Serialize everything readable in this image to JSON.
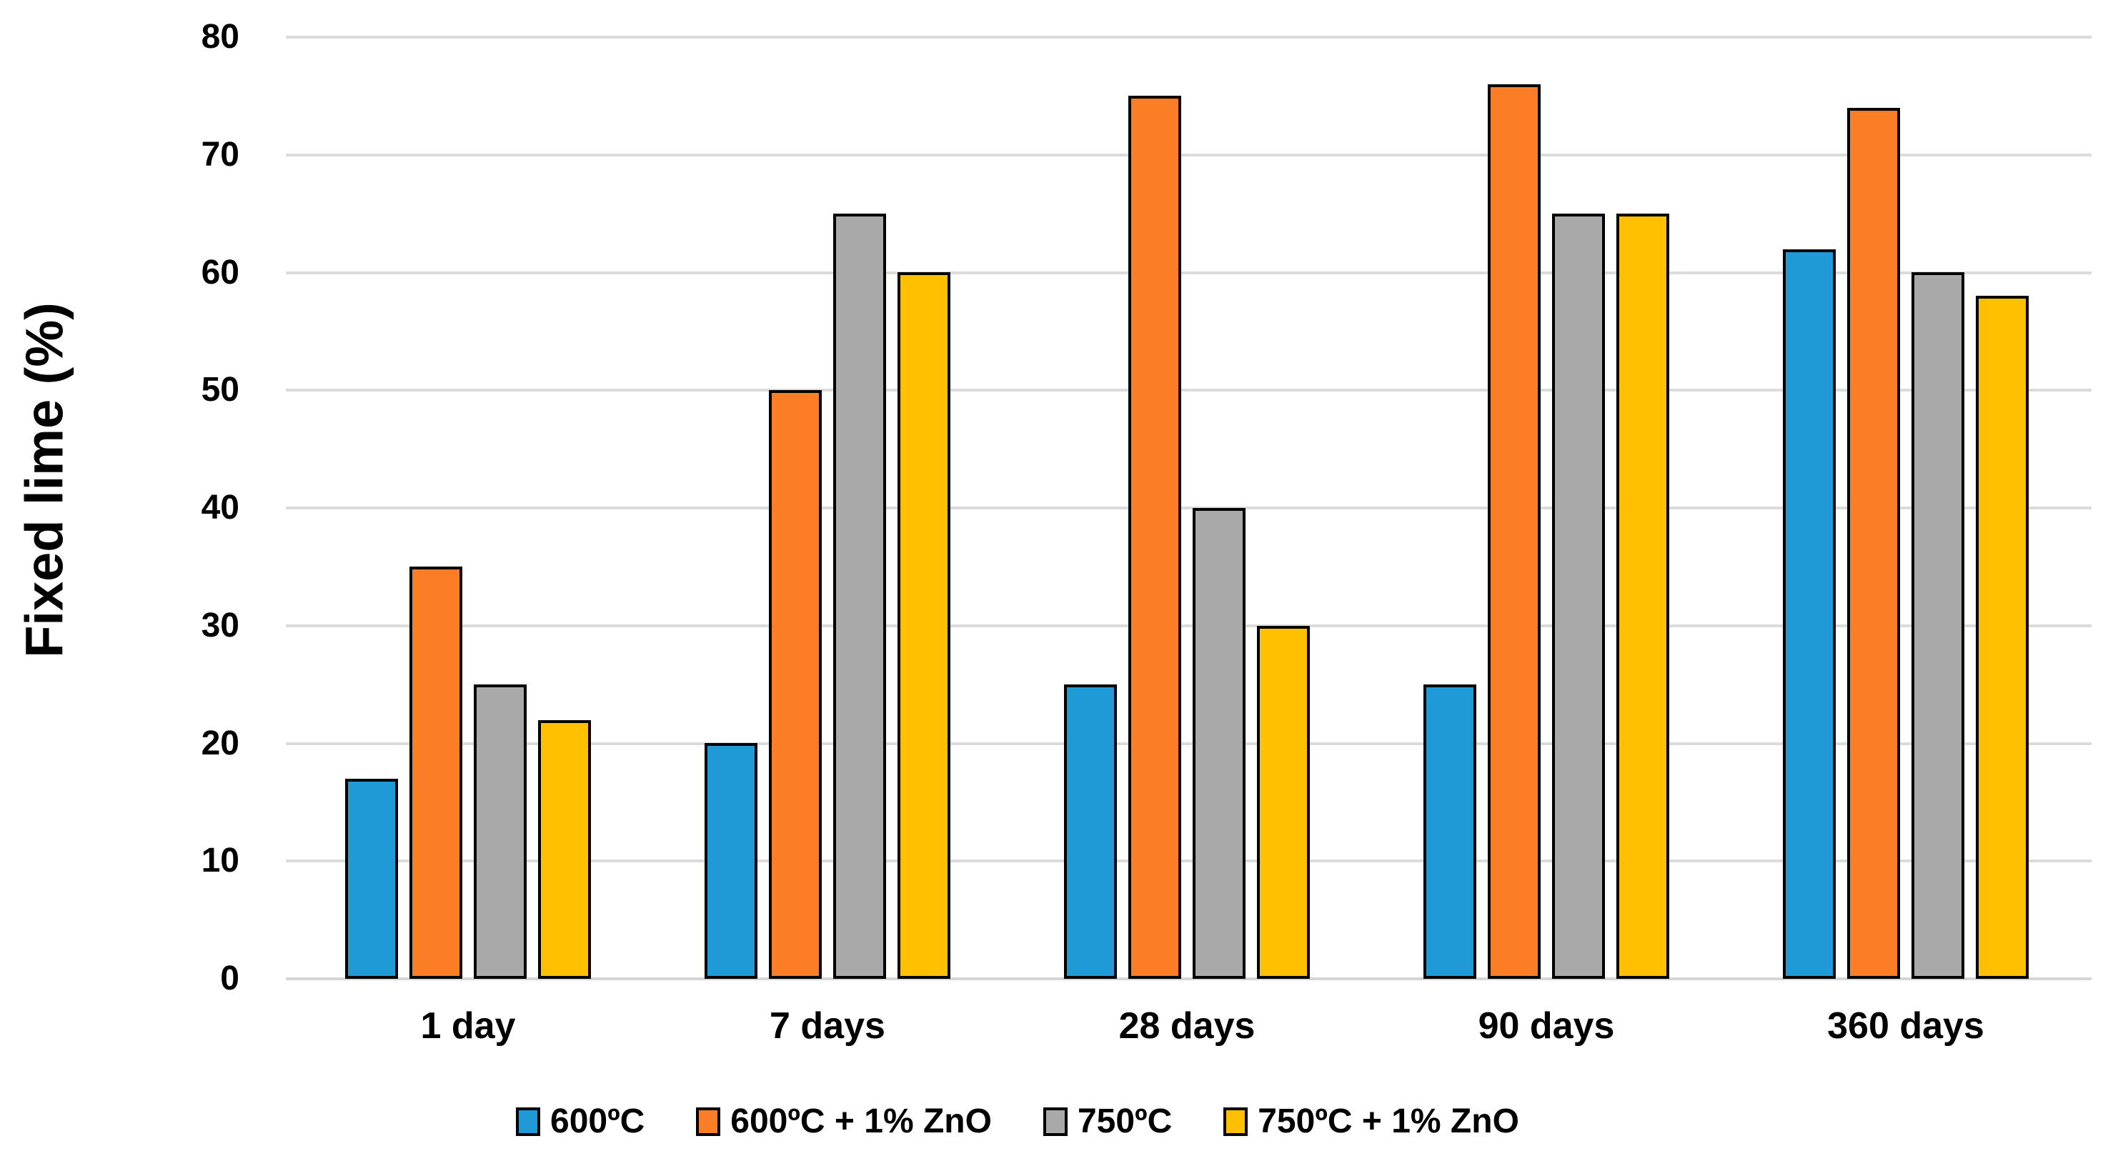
{
  "chart_data": {
    "type": "bar",
    "title": "",
    "xlabel": "",
    "ylabel": "Fixed lime (%)",
    "ylim": [
      0,
      80
    ],
    "ytick_step": 10,
    "yticks": [
      0,
      10,
      20,
      30,
      40,
      50,
      60,
      70,
      80
    ],
    "ytick_labels": [
      "0",
      "10",
      "20",
      "30",
      "40",
      "50",
      "60",
      "70",
      "80"
    ],
    "grid": "horizontal",
    "legend_position": "bottom",
    "categories": [
      "1 day",
      "7 days",
      "28 days",
      "90 days",
      "360 days"
    ],
    "series": [
      {
        "name": "600ºC",
        "color": "#1F9AD7",
        "values": [
          17,
          20,
          25,
          25,
          62
        ]
      },
      {
        "name": "600ºC + 1% ZnO",
        "color": "#FB7D25",
        "values": [
          35,
          50,
          75,
          76,
          74
        ]
      },
      {
        "name": "750ºC",
        "color": "#A9A9A9",
        "values": [
          25,
          65,
          40,
          65,
          60
        ]
      },
      {
        "name": "750ºC + 1% ZnO",
        "color": "#FEC000",
        "values": [
          22,
          60,
          30,
          65,
          58
        ]
      }
    ],
    "colors": {
      "bar_outline": "#000000",
      "gridline": "#DBDBDB",
      "axis_line": "#D6D6D6",
      "text": "#000000",
      "background": "#FFFFFF"
    }
  }
}
